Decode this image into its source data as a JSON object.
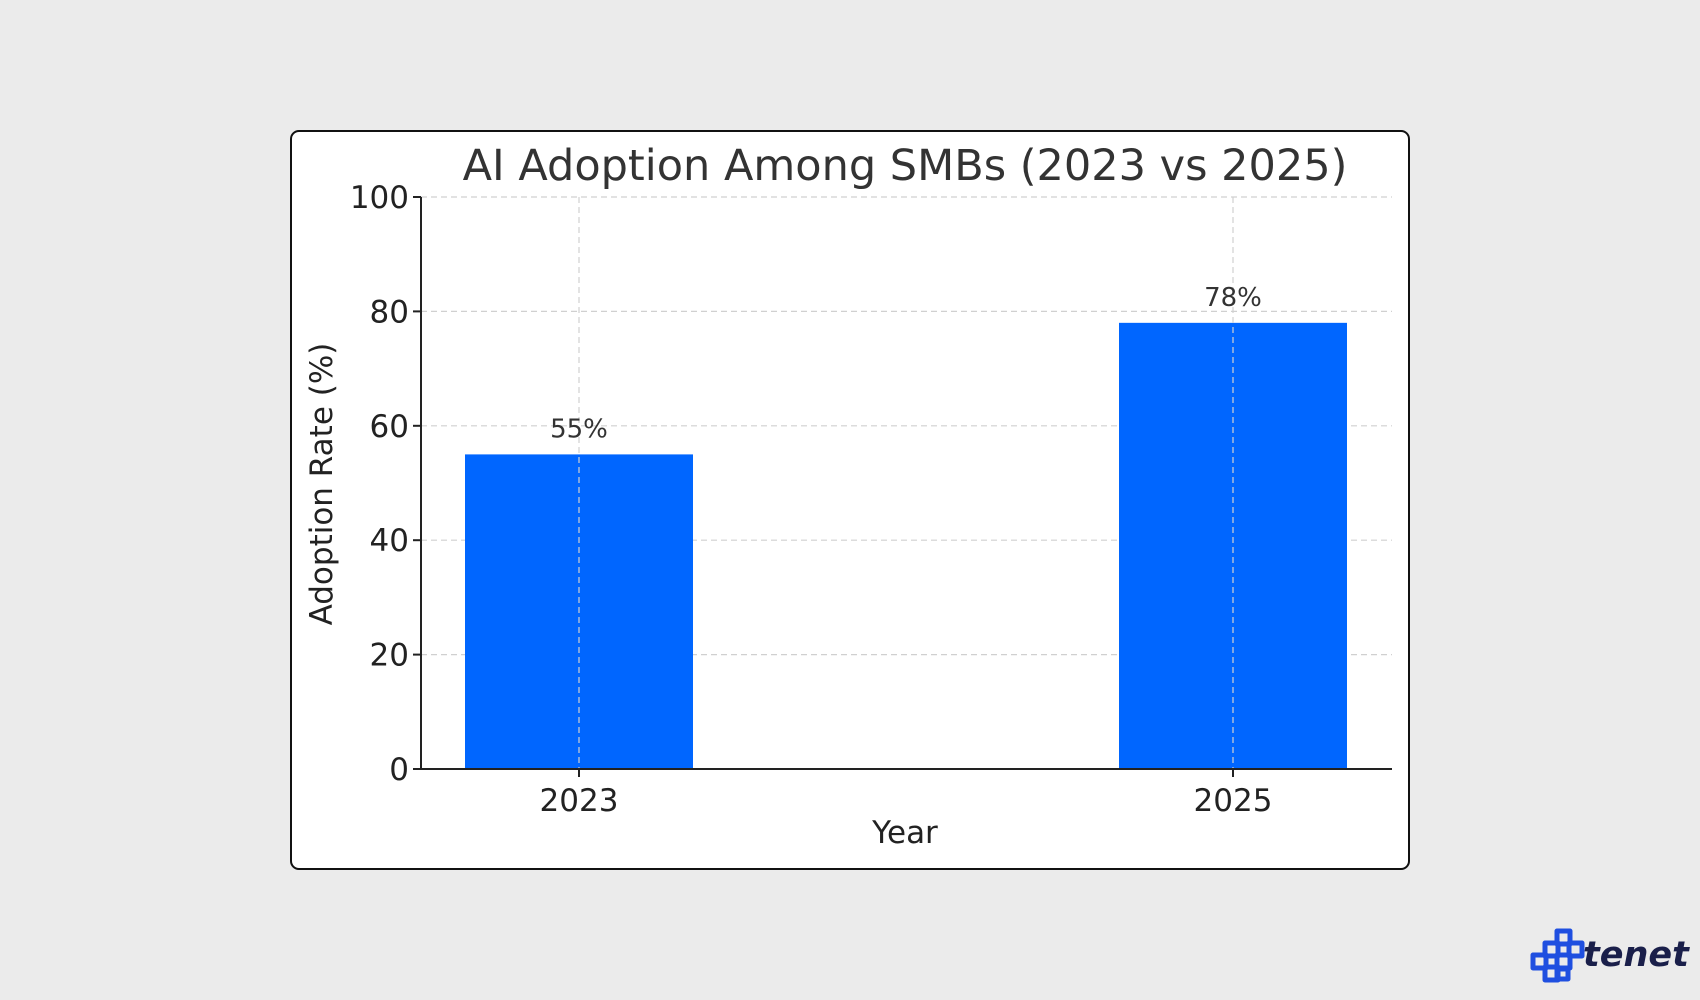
{
  "brand": {
    "name": "tenet",
    "accent_color": "#1f4fe0",
    "text_color": "#1a1f4a",
    "icon": "tenet-logo-icon"
  },
  "colors": {
    "background": "#ebebeb",
    "panel": "#ffffff",
    "bar": "#0066ff",
    "grid": "#d0d0d0",
    "axis": "#222222"
  },
  "chart_data": {
    "type": "bar",
    "title": "AI Adoption Among SMBs (2023 vs 2025)",
    "xlabel": "Year",
    "ylabel": "Adoption Rate (%)",
    "categories": [
      "2023",
      "2025"
    ],
    "values": [
      55,
      78
    ],
    "data_labels": [
      "55%",
      "78%"
    ],
    "ylim": [
      0,
      100
    ],
    "yticks": [
      0,
      20,
      40,
      60,
      80,
      100
    ],
    "grid": true,
    "grid_style": "dashed",
    "legend": "none"
  }
}
